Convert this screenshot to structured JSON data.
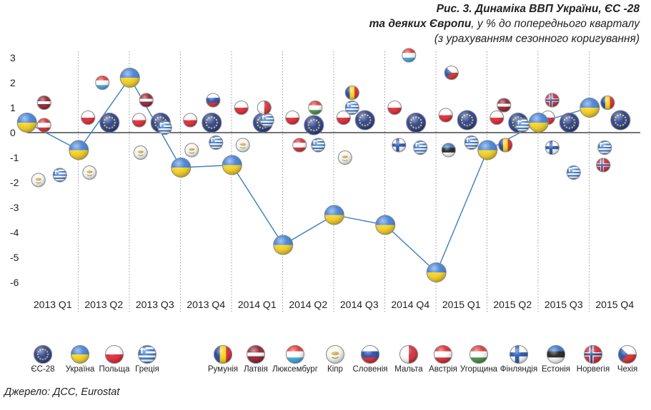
{
  "title": {
    "line1": "Рис. 3. Динаміка ВВП України, ЄС -28",
    "line2_bold": "та деяких Європи",
    "line2_rest": ", у % до попереднього кварталу",
    "line3": "(з урахуванням сезонного коригування)"
  },
  "source": "Джерело: ДСС, Eurostat",
  "colors": {
    "ukraine_line": "#3a7fbf",
    "axis": "#222222",
    "grid_dotted": "#9a9a9a"
  },
  "chart_data": {
    "type": "scatter",
    "categories": [
      "2013 Q1",
      "2013 Q2",
      "2013 Q3",
      "2013 Q4",
      "2014 Q1",
      "2014 Q2",
      "2014 Q3",
      "2014 Q4",
      "2015 Q1",
      "2015 Q2",
      "2015 Q3",
      "2015 Q4"
    ],
    "ylim": [
      -6.5,
      3.5
    ],
    "yticks": [
      "3",
      "2",
      "1",
      "0",
      "-1",
      "-2",
      "-3",
      "-4",
      "-5",
      "-6"
    ],
    "line_series": "ukraine",
    "series": [
      {
        "name": "ЄС-28",
        "key": "eu",
        "values": [
          null,
          0.4,
          0.4,
          0.4,
          0.4,
          0.3,
          0.5,
          0.4,
          0.5,
          0.4,
          0.4,
          0.5
        ]
      },
      {
        "name": "Україна",
        "key": "ukraine",
        "values": [
          0.4,
          -0.7,
          2.2,
          -1.4,
          -1.3,
          -4.5,
          -3.3,
          -3.7,
          -5.6,
          -0.7,
          0.4,
          1.0
        ]
      },
      {
        "name": "Польща",
        "key": "poland",
        "values": [
          null,
          0.6,
          0.5,
          0.5,
          1.0,
          0.6,
          0.6,
          1.0,
          0.7,
          0.6,
          0.6,
          null
        ]
      },
      {
        "name": "Греція",
        "key": "greece",
        "values": [
          -1.7,
          null,
          0.2,
          -0.4,
          0.5,
          -0.5,
          1.0,
          -0.6,
          -0.4,
          0.3,
          -1.6,
          -0.6
        ]
      },
      {
        "name": "Румунія",
        "key": "romania",
        "values": [
          null,
          null,
          null,
          null,
          null,
          null,
          1.6,
          null,
          null,
          -0.5,
          null,
          1.2
        ]
      },
      {
        "name": "Латвія",
        "key": "latvia",
        "values": [
          1.2,
          null,
          1.3,
          null,
          null,
          null,
          null,
          null,
          null,
          1.1,
          null,
          null
        ]
      },
      {
        "name": "Люксембург",
        "key": "luxembourg",
        "values": [
          null,
          2.0,
          null,
          null,
          null,
          null,
          null,
          3.1,
          null,
          null,
          null,
          null
        ]
      },
      {
        "name": "Кіпр",
        "key": "cyprus",
        "values": [
          -1.9,
          -1.6,
          -0.8,
          -0.7,
          -0.5,
          null,
          -1.0,
          null,
          null,
          null,
          null,
          null
        ]
      },
      {
        "name": "Словенія",
        "key": "slovenia",
        "values": [
          null,
          null,
          null,
          1.3,
          null,
          null,
          null,
          null,
          null,
          null,
          null,
          null
        ]
      },
      {
        "name": "Мальта",
        "key": "malta",
        "values": [
          null,
          null,
          null,
          null,
          1.0,
          null,
          null,
          null,
          null,
          null,
          null,
          null
        ]
      },
      {
        "name": "Австрія",
        "key": "austria",
        "values": [
          0.3,
          null,
          null,
          null,
          null,
          -0.5,
          null,
          null,
          null,
          null,
          null,
          null
        ]
      },
      {
        "name": "Угорщина",
        "key": "hungary",
        "values": [
          null,
          null,
          null,
          null,
          null,
          1.0,
          null,
          null,
          null,
          null,
          null,
          null
        ]
      },
      {
        "name": "Фінляндія",
        "key": "finland",
        "values": [
          null,
          null,
          null,
          null,
          null,
          null,
          null,
          -0.5,
          null,
          null,
          -0.6,
          null
        ]
      },
      {
        "name": "Естонія",
        "key": "estonia",
        "values": [
          null,
          null,
          null,
          null,
          null,
          null,
          null,
          null,
          -0.7,
          null,
          null,
          null
        ]
      },
      {
        "name": "Норвегія",
        "key": "norway",
        "values": [
          null,
          null,
          null,
          null,
          null,
          null,
          null,
          null,
          null,
          null,
          1.3,
          -1.3
        ]
      },
      {
        "name": "Чехія",
        "key": "czech",
        "values": [
          null,
          null,
          null,
          null,
          null,
          null,
          null,
          null,
          2.4,
          null,
          null,
          null
        ]
      }
    ],
    "legend_order": [
      "eu",
      "ukraine",
      "poland",
      "greece",
      "romania",
      "latvia",
      "luxembourg",
      "cyprus",
      "slovenia",
      "malta",
      "austria",
      "hungary",
      "finland",
      "estonia",
      "norway",
      "czech"
    ],
    "grid": "vertical-dotted",
    "legend_position": "bottom"
  }
}
